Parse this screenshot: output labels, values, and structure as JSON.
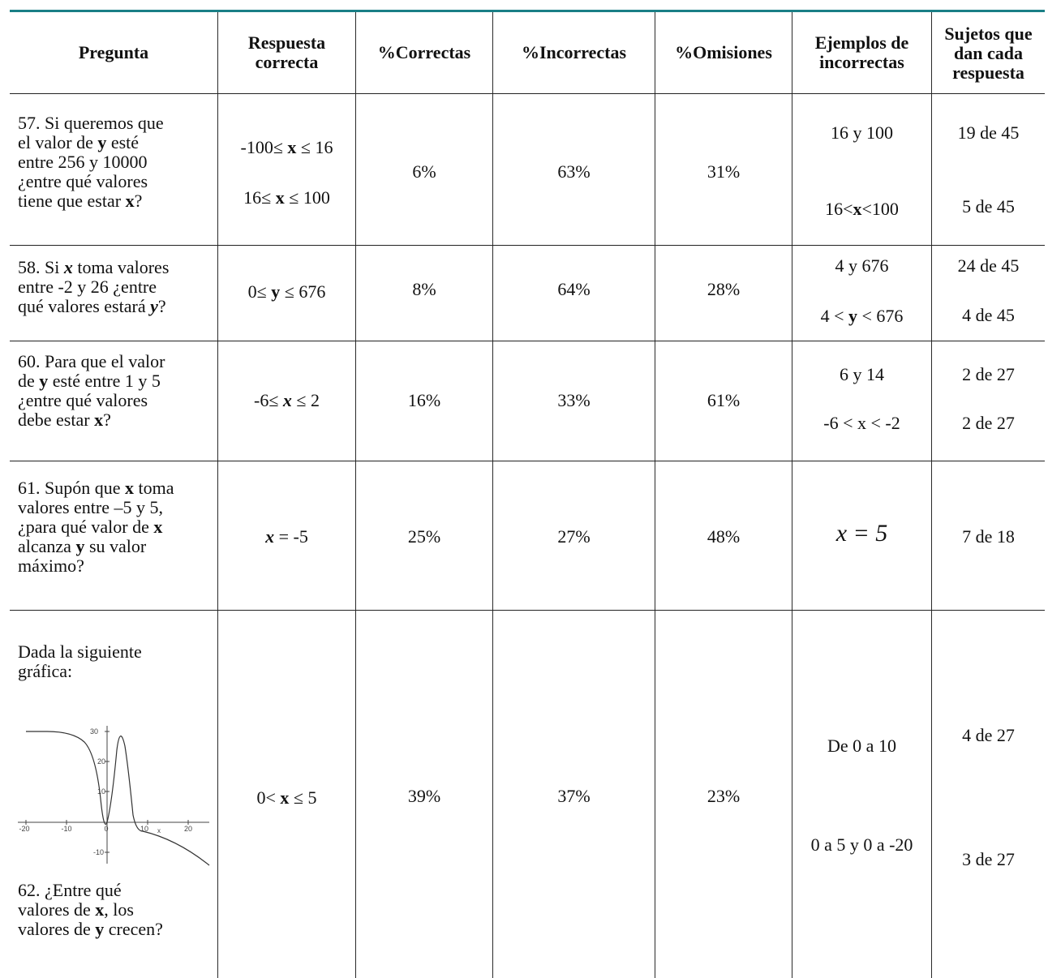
{
  "headers": {
    "pregunta": "Pregunta",
    "respuesta_1": "Respuesta",
    "respuesta_2": "correcta",
    "correctas": "%Correctas",
    "incorrectas": "%Incorrectas",
    "omisiones": "%Omisiones",
    "ejemplos_1": "Ejemplos de",
    "ejemplos_2": "incorrectas",
    "sujetos_1": "Sujetos que",
    "sujetos_2": "dan cada",
    "sujetos_3": "respuesta"
  },
  "rows": [
    {
      "q_text_1": "57. Si queremos que",
      "q_text_2a": "el valor de ",
      "q_var_y": "y",
      "q_text_2b": " esté",
      "q_text_3": "entre 256 y 10000",
      "q_text_4": "¿entre qué valores",
      "q_text_5a": "tiene que estar ",
      "q_var_x": "x",
      "q_text_5b": "?",
      "answer_1a": "-100≤ ",
      "answer_1x": "x",
      "answer_1b": " ≤ 16",
      "answer_2a": "16≤ ",
      "answer_2x": "x",
      "answer_2b": " ≤ 100",
      "correctas": "6%",
      "incorrectas": "63%",
      "omisiones": "31%",
      "ejemplo_1": "16 y 100",
      "ejemplo_2a": "16<",
      "ejemplo_2x": "x",
      "ejemplo_2b": "<100",
      "sujetos_1": "19 de 45",
      "sujetos_2": "5 de 45"
    },
    {
      "q_text_1a": "58. Si ",
      "q_var_x": "x",
      "q_text_1b": " toma valores",
      "q_text_2": "entre -2 y 26 ¿entre",
      "q_text_3a": "qué valores estará ",
      "q_var_y": "y",
      "q_text_3b": "?",
      "answer_a": "0≤ ",
      "answer_y": "y",
      "answer_b": " ≤ 676",
      "correctas": "8%",
      "incorrectas": "64%",
      "omisiones": "28%",
      "ejemplo_1": "4 y 676",
      "ejemplo_2a": "4 < ",
      "ejemplo_2y": "y",
      "ejemplo_2b": " < 676",
      "sujetos_1": "24 de 45",
      "sujetos_2": "4 de 45"
    },
    {
      "q_text_1": "60. Para que el valor",
      "q_text_2a": "de ",
      "q_var_y": "y",
      "q_text_2b": " esté entre 1 y 5",
      "q_text_3": "¿entre qué valores",
      "q_text_4a": "debe estar ",
      "q_var_x": "x",
      "q_text_4b": "?",
      "answer_a": "-6≤ ",
      "answer_x": "x",
      "answer_b": " ≤ 2",
      "correctas": "16%",
      "incorrectas": "33%",
      "omisiones": "61%",
      "ejemplo_1": "6 y 14",
      "ejemplo_2": "-6 < x < -2",
      "sujetos_1": "2 de 27",
      "sujetos_2": "2 de 27"
    },
    {
      "q_text_1a": "61. Supón que ",
      "q_var_x1": "x",
      "q_text_1b": " toma",
      "q_text_2": "valores entre –5 y 5,",
      "q_text_3a": "¿para qué valor de ",
      "q_var_x2": "x",
      "q_text_4a": "alcanza ",
      "q_var_y": "y",
      "q_text_4b": " su valor",
      "q_text_5": "máximo?",
      "answer_x": "x",
      "answer_b": " = -5",
      "correctas": "25%",
      "incorrectas": "27%",
      "omisiones": "48%",
      "ejemplo_1": "x = 5",
      "sujetos_1": "7 de 18"
    },
    {
      "q_text_1": "Dada la siguiente",
      "q_text_2": "gráfica:",
      "q_text_3": "62. ¿Entre qué",
      "q_text_4a": "valores de ",
      "q_var_x": "x",
      "q_text_4b": ", los",
      "q_text_5a": "valores de ",
      "q_var_y": "y",
      "q_text_5b": " crecen?",
      "answer_a": "0< ",
      "answer_x": "x",
      "answer_b": " ≤ 5",
      "correctas": "39%",
      "incorrectas": "37%",
      "omisiones": "23%",
      "ejemplo_1": "De 0 a 10",
      "ejemplo_2": "0 a 5 y 0 a -20",
      "sujetos_1": "4 de 27",
      "sujetos_2": "3 de 27",
      "graph": {
        "x_ticks": [
          "-20",
          "-10",
          "0",
          "10",
          "20"
        ],
        "x_label": "x",
        "y_ticks": [
          "30",
          "20",
          "10",
          "-10"
        ]
      }
    }
  ]
}
